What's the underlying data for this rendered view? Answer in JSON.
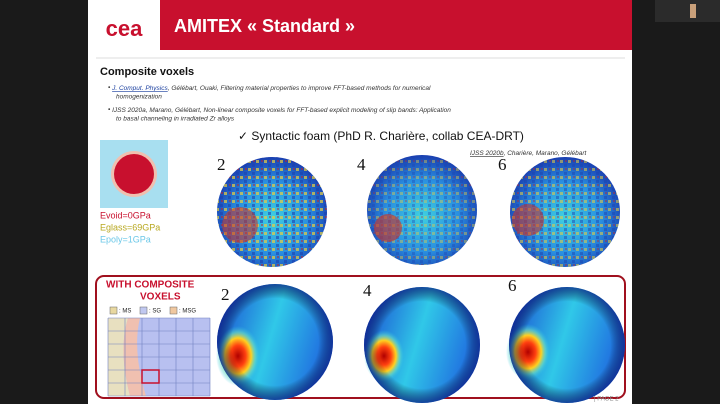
{
  "header": {
    "logo": "cea",
    "title": "AMITEX « Standard »"
  },
  "section": {
    "heading": "Composite voxels",
    "references": [
      {
        "link": "J. Comput. Physics",
        "text": ", Gélébart, Ouaki,  Filtering material properties to improve FFT-based methods for numerical",
        "text2": "homogenization"
      },
      {
        "link": "IJSS 2020a",
        "text": ", Marano, Gélébart, Non-linear composite voxels for FFT-based explicit modeling of slip bands: Application",
        "text2": "to basal channeling in irradiated Zr alloys"
      }
    ]
  },
  "foam": {
    "caption": "✓  Syntactic foam (PhD R. Charière, collab CEA-DRT)",
    "reference": {
      "link": "IJSS 2020b",
      "text": ", Charière, Marano, Gélébart"
    }
  },
  "materials": [
    "Evoid=0GPa",
    "Eglass=69GPa",
    "Epoly=1GPa"
  ],
  "top_row": {
    "labels": [
      "2",
      "4",
      "6"
    ]
  },
  "composite": {
    "title": [
      "WITH COMPOSITE",
      "VOXELS"
    ],
    "legend": [
      ": MS",
      ": SG",
      ": MSG"
    ]
  },
  "bottom_row": {
    "labels": [
      "2",
      "4",
      "6"
    ]
  },
  "footer": {
    "page": "| PAGE 2"
  }
}
